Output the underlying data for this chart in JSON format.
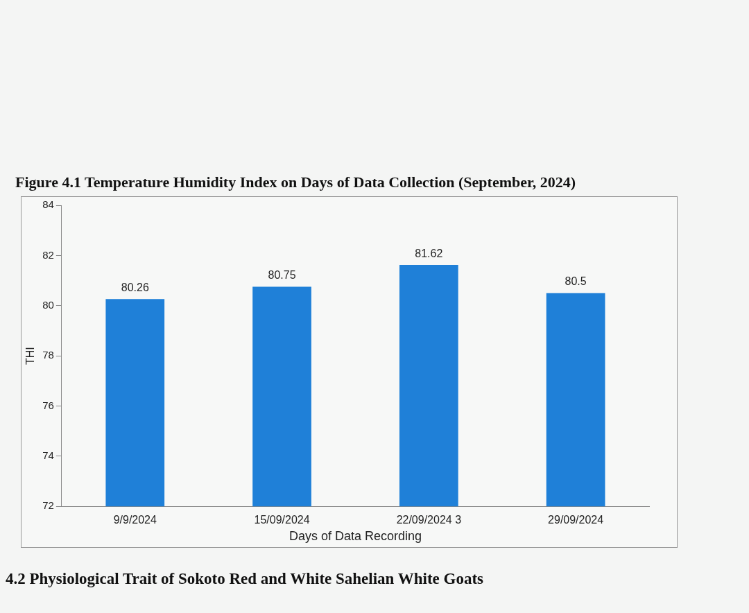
{
  "chart_data": {
    "type": "bar",
    "title": "Figure 4.1 Temperature Humidity Index on Days of Data Collection (September, 2024)",
    "categories": [
      "9/9/2024",
      "15/09/2024",
      "22/09/2024 3",
      "29/09/2024"
    ],
    "values": [
      80.26,
      80.75,
      81.62,
      80.5
    ],
    "color": "#1f80d8",
    "ylim": [
      72,
      84
    ],
    "yticks": [
      72,
      74,
      76,
      78,
      80,
      82,
      84
    ],
    "xlabel": "Days of Data Recording",
    "ylabel": "THI",
    "data_labels": true,
    "grid": false,
    "legend": false,
    "annotations": [
      "4.2 Physiological Trait of Sokoto Red and White Sahelian White Goats"
    ]
  }
}
